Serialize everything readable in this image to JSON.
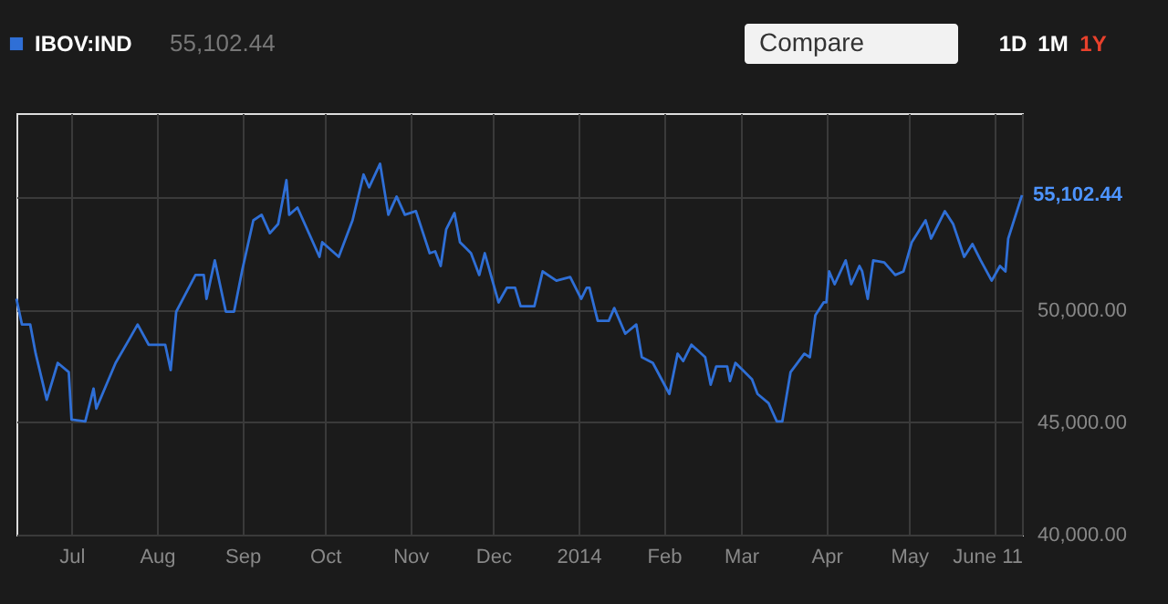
{
  "chart_data": {
    "type": "line",
    "subtitle": "55,102.44",
    "x": [
      "2013-06-11",
      "2013-06-13",
      "2013-06-16",
      "2013-06-18",
      "2013-06-22",
      "2013-06-26",
      "2013-06-30",
      "2013-07-01",
      "2013-07-06",
      "2013-07-09",
      "2013-07-10",
      "2013-07-17",
      "2013-07-22",
      "2013-07-25",
      "2013-07-29",
      "2013-08-04",
      "2013-08-06",
      "2013-08-08",
      "2013-08-15",
      "2013-08-18",
      "2013-08-19",
      "2013-08-22",
      "2013-08-26",
      "2013-08-29",
      "2013-09-01",
      "2013-09-05",
      "2013-09-08",
      "2013-09-11",
      "2013-09-14",
      "2013-09-17",
      "2013-09-18",
      "2013-09-21",
      "2013-09-29",
      "2013-09-30",
      "2013-10-06",
      "2013-10-11",
      "2013-10-15",
      "2013-10-17",
      "2013-10-21",
      "2013-10-24",
      "2013-10-27",
      "2013-10-30",
      "2013-11-03",
      "2013-11-08",
      "2013-11-10",
      "2013-11-12",
      "2013-11-14",
      "2013-11-17",
      "2013-11-19",
      "2013-11-23",
      "2013-11-26",
      "2013-11-28",
      "2013-12-03",
      "2013-12-06",
      "2013-12-09",
      "2013-12-11",
      "2013-12-16",
      "2013-12-19",
      "2013-12-24",
      "2013-12-29",
      "2014-01-02",
      "2014-01-04",
      "2014-01-05",
      "2014-01-08",
      "2014-01-12",
      "2014-01-14",
      "2014-01-18",
      "2014-01-22",
      "2014-01-24",
      "2014-01-28",
      "2014-02-03",
      "2014-02-06",
      "2014-02-08",
      "2014-02-11",
      "2014-02-16",
      "2014-02-18",
      "2014-02-20",
      "2014-02-24",
      "2014-02-25",
      "2014-02-27",
      "2014-03-05",
      "2014-03-07",
      "2014-03-11",
      "2014-03-14",
      "2014-03-16",
      "2014-03-19",
      "2014-03-24",
      "2014-03-26",
      "2014-03-28",
      "2014-03-31",
      "2014-04-01",
      "2014-04-02",
      "2014-04-04",
      "2014-04-08",
      "2014-04-10",
      "2014-04-13",
      "2014-04-14",
      "2014-04-16",
      "2014-04-18",
      "2014-04-22",
      "2014-04-26",
      "2014-04-29",
      "2014-05-02",
      "2014-05-07",
      "2014-05-09",
      "2014-05-14",
      "2014-05-17",
      "2014-05-21",
      "2014-05-24",
      "2014-05-27",
      "2014-05-31",
      "2014-06-03",
      "2014-06-05",
      "2014-06-06",
      "2014-06-11"
    ],
    "series": [
      {
        "name": "IBOV:IND",
        "color": "#2f6fd6",
        "values": [
          50490,
          49350,
          49350,
          48050,
          46000,
          47640,
          47230,
          45120,
          45040,
          46500,
          45610,
          47640,
          48700,
          49350,
          48450,
          48450,
          47320,
          49920,
          51550,
          51550,
          50490,
          52200,
          49920,
          49920,
          51790,
          53980,
          54230,
          53410,
          53820,
          55770,
          54230,
          54550,
          52360,
          53010,
          52360,
          53980,
          56020,
          55450,
          56500,
          54230,
          55040,
          54230,
          54390,
          52520,
          52600,
          51950,
          53580,
          54310,
          53010,
          52520,
          51550,
          52520,
          50330,
          50980,
          50980,
          50160,
          50160,
          51710,
          51300,
          51460,
          50490,
          50980,
          50980,
          49510,
          49510,
          50080,
          48940,
          49350,
          47890,
          47640,
          46260,
          48050,
          47720,
          48450,
          47890,
          46670,
          47480,
          47480,
          46830,
          47640,
          46910,
          46260,
          45850,
          45040,
          45040,
          47230,
          48050,
          47890,
          49760,
          50330,
          50330,
          51710,
          51140,
          52200,
          51140,
          51950,
          51710,
          50490,
          52200,
          52110,
          51550,
          51710,
          53010,
          53980,
          53170,
          54390,
          53820,
          52360,
          52930,
          52200,
          51300,
          51950,
          51710,
          53170,
          55102.44
        ]
      }
    ],
    "xlim": [
      "2013-06-11",
      "2014-06-11"
    ],
    "xticks": [
      {
        "value": "2013-07-01",
        "label": "Jul"
      },
      {
        "value": "2013-08-01",
        "label": "Aug"
      },
      {
        "value": "2013-09-01",
        "label": "Sep"
      },
      {
        "value": "2013-10-01",
        "label": "Oct"
      },
      {
        "value": "2013-11-01",
        "label": "Nov"
      },
      {
        "value": "2013-12-01",
        "label": "Dec"
      },
      {
        "value": "2014-01-01",
        "label": "2014"
      },
      {
        "value": "2014-02-01",
        "label": "Feb"
      },
      {
        "value": "2014-03-01",
        "label": "Mar"
      },
      {
        "value": "2014-04-01",
        "label": "Apr"
      },
      {
        "value": "2014-05-01",
        "label": "May"
      },
      {
        "value": "2014-06-01",
        "label": null
      },
      {
        "value": "2014-06-11",
        "label": "June 11"
      }
    ],
    "ylim": [
      40000,
      58750
    ],
    "yticks": [
      {
        "value": 40000,
        "label": "40,000.00"
      },
      {
        "value": 45000,
        "label": "45,000.00"
      },
      {
        "value": 50000,
        "label": "50,000.00"
      },
      {
        "value": 55000,
        "label": null
      }
    ],
    "grid": true,
    "legend": "top left",
    "annotations": [
      "Compare",
      "1D",
      "1M",
      "1Y",
      {
        "text": "55,102.44",
        "x": "2014-06-11",
        "y": 55102.44
      }
    ]
  }
}
